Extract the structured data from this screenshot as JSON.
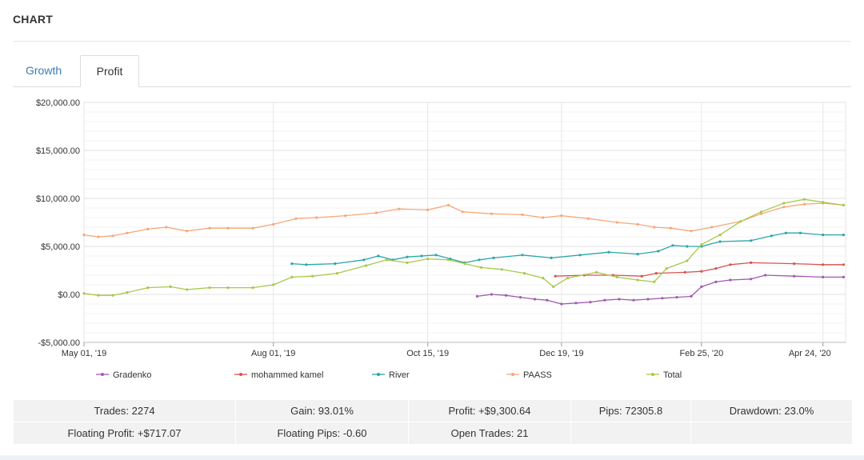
{
  "header": {
    "title": "CHART"
  },
  "tabs": [
    {
      "label": "Growth"
    },
    {
      "label": "Profit"
    }
  ],
  "chart_data": {
    "type": "line",
    "ylim": [
      -5000,
      20000
    ],
    "y_ticks": [
      {
        "value": 20000,
        "label": "$20,000.00"
      },
      {
        "value": 15000,
        "label": "$15,000.00"
      },
      {
        "value": 10000,
        "label": "$10,000.00"
      },
      {
        "value": 5000,
        "label": "$5,000.00"
      },
      {
        "value": 0,
        "label": "$0.00"
      },
      {
        "value": -5000,
        "label": "-$5,000.00"
      }
    ],
    "x_ticks": [
      {
        "date": "2019-05-01",
        "label": "May 01, '19"
      },
      {
        "date": "2019-08-01",
        "label": "Aug 01, '19"
      },
      {
        "date": "2019-10-15",
        "label": "Oct 15, '19"
      },
      {
        "date": "2019-12-19",
        "label": "Dec 19, '19"
      },
      {
        "date": "2020-02-25",
        "label": "Feb 25, '20"
      },
      {
        "date": "2020-04-24",
        "label": "Apr 24, '20"
      }
    ],
    "xlim": [
      "2019-05-01",
      "2020-05-05"
    ],
    "grid": true,
    "legend_position": "bottom",
    "series": [
      {
        "name": "Gradenko",
        "color": "#a05bb0",
        "points": [
          [
            "2019-11-08",
            -200
          ],
          [
            "2019-11-15",
            0
          ],
          [
            "2019-11-22",
            -100
          ],
          [
            "2019-11-29",
            -300
          ],
          [
            "2019-12-06",
            -500
          ],
          [
            "2019-12-12",
            -600
          ],
          [
            "2019-12-19",
            -1000
          ],
          [
            "2019-12-26",
            -900
          ],
          [
            "2020-01-02",
            -800
          ],
          [
            "2020-01-09",
            -600
          ],
          [
            "2020-01-16",
            -500
          ],
          [
            "2020-01-23",
            -600
          ],
          [
            "2020-01-30",
            -500
          ],
          [
            "2020-02-06",
            -400
          ],
          [
            "2020-02-13",
            -300
          ],
          [
            "2020-02-20",
            -200
          ],
          [
            "2020-02-25",
            800
          ],
          [
            "2020-03-03",
            1300
          ],
          [
            "2020-03-10",
            1500
          ],
          [
            "2020-03-20",
            1600
          ],
          [
            "2020-03-27",
            2000
          ],
          [
            "2020-04-10",
            1900
          ],
          [
            "2020-04-24",
            1800
          ],
          [
            "2020-05-04",
            1800
          ]
        ]
      },
      {
        "name": "mohammed kamel",
        "color": "#d9534f",
        "points": [
          [
            "2019-12-16",
            1900
          ],
          [
            "2019-12-30",
            2000
          ],
          [
            "2020-01-13",
            2000
          ],
          [
            "2020-01-27",
            1900
          ],
          [
            "2020-02-03",
            2200
          ],
          [
            "2020-02-17",
            2300
          ],
          [
            "2020-02-25",
            2400
          ],
          [
            "2020-03-03",
            2700
          ],
          [
            "2020-03-10",
            3100
          ],
          [
            "2020-03-20",
            3300
          ],
          [
            "2020-04-10",
            3200
          ],
          [
            "2020-04-24",
            3100
          ],
          [
            "2020-05-04",
            3100
          ]
        ]
      },
      {
        "name": "River",
        "color": "#2aa6a8",
        "points": [
          [
            "2019-08-10",
            3200
          ],
          [
            "2019-08-17",
            3100
          ],
          [
            "2019-08-31",
            3200
          ],
          [
            "2019-09-14",
            3600
          ],
          [
            "2019-09-21",
            4000
          ],
          [
            "2019-09-28",
            3600
          ],
          [
            "2019-10-05",
            3900
          ],
          [
            "2019-10-12",
            4000
          ],
          [
            "2019-10-19",
            4100
          ],
          [
            "2019-10-26",
            3700
          ],
          [
            "2019-11-02",
            3300
          ],
          [
            "2019-11-09",
            3600
          ],
          [
            "2019-11-16",
            3800
          ],
          [
            "2019-11-30",
            4100
          ],
          [
            "2019-12-14",
            3800
          ],
          [
            "2019-12-28",
            4100
          ],
          [
            "2020-01-11",
            4400
          ],
          [
            "2020-01-25",
            4200
          ],
          [
            "2020-02-04",
            4500
          ],
          [
            "2020-02-11",
            5100
          ],
          [
            "2020-02-18",
            5000
          ],
          [
            "2020-02-25",
            5000
          ],
          [
            "2020-03-05",
            5500
          ],
          [
            "2020-03-20",
            5600
          ],
          [
            "2020-03-30",
            6100
          ],
          [
            "2020-04-06",
            6400
          ],
          [
            "2020-04-13",
            6400
          ],
          [
            "2020-04-24",
            6200
          ],
          [
            "2020-05-04",
            6200
          ]
        ]
      },
      {
        "name": "PAASS",
        "color": "#f7a77a",
        "points": [
          [
            "2019-05-01",
            6200
          ],
          [
            "2019-05-08",
            6000
          ],
          [
            "2019-05-15",
            6100
          ],
          [
            "2019-05-22",
            6400
          ],
          [
            "2019-06-01",
            6800
          ],
          [
            "2019-06-10",
            7000
          ],
          [
            "2019-06-20",
            6600
          ],
          [
            "2019-07-01",
            6900
          ],
          [
            "2019-07-10",
            6900
          ],
          [
            "2019-07-22",
            6900
          ],
          [
            "2019-08-01",
            7300
          ],
          [
            "2019-08-12",
            7900
          ],
          [
            "2019-08-22",
            8000
          ],
          [
            "2019-09-05",
            8200
          ],
          [
            "2019-09-20",
            8500
          ],
          [
            "2019-10-01",
            8900
          ],
          [
            "2019-10-15",
            8800
          ],
          [
            "2019-10-25",
            9300
          ],
          [
            "2019-11-01",
            8600
          ],
          [
            "2019-11-15",
            8400
          ],
          [
            "2019-11-30",
            8300
          ],
          [
            "2019-12-10",
            8000
          ],
          [
            "2019-12-19",
            8200
          ],
          [
            "2020-01-01",
            7900
          ],
          [
            "2020-01-15",
            7500
          ],
          [
            "2020-01-25",
            7300
          ],
          [
            "2020-02-02",
            7000
          ],
          [
            "2020-02-10",
            6900
          ],
          [
            "2020-02-20",
            6600
          ],
          [
            "2020-03-01",
            7000
          ],
          [
            "2020-03-15",
            7600
          ],
          [
            "2020-03-25",
            8400
          ],
          [
            "2020-04-05",
            9100
          ],
          [
            "2020-04-15",
            9400
          ],
          [
            "2020-04-24",
            9500
          ],
          [
            "2020-05-04",
            9300
          ]
        ]
      },
      {
        "name": "Total",
        "color": "#a8c84b",
        "points": [
          [
            "2019-05-01",
            100
          ],
          [
            "2019-05-08",
            -100
          ],
          [
            "2019-05-15",
            -100
          ],
          [
            "2019-05-22",
            200
          ],
          [
            "2019-06-01",
            700
          ],
          [
            "2019-06-12",
            800
          ],
          [
            "2019-06-20",
            500
          ],
          [
            "2019-07-01",
            700
          ],
          [
            "2019-07-10",
            700
          ],
          [
            "2019-07-22",
            700
          ],
          [
            "2019-08-01",
            1000
          ],
          [
            "2019-08-10",
            1800
          ],
          [
            "2019-08-20",
            1900
          ],
          [
            "2019-09-01",
            2200
          ],
          [
            "2019-09-15",
            3000
          ],
          [
            "2019-09-25",
            3600
          ],
          [
            "2019-10-05",
            3300
          ],
          [
            "2019-10-15",
            3700
          ],
          [
            "2019-10-25",
            3600
          ],
          [
            "2019-11-02",
            3200
          ],
          [
            "2019-11-10",
            2800
          ],
          [
            "2019-11-20",
            2600
          ],
          [
            "2019-12-01",
            2200
          ],
          [
            "2019-12-10",
            1700
          ],
          [
            "2019-12-15",
            800
          ],
          [
            "2019-12-22",
            1700
          ],
          [
            "2020-01-05",
            2300
          ],
          [
            "2020-01-15",
            1800
          ],
          [
            "2020-01-25",
            1500
          ],
          [
            "2020-02-02",
            1300
          ],
          [
            "2020-02-08",
            2700
          ],
          [
            "2020-02-18",
            3500
          ],
          [
            "2020-02-25",
            5200
          ],
          [
            "2020-03-05",
            6200
          ],
          [
            "2020-03-15",
            7600
          ],
          [
            "2020-03-25",
            8600
          ],
          [
            "2020-04-05",
            9500
          ],
          [
            "2020-04-15",
            9900
          ],
          [
            "2020-04-24",
            9600
          ],
          [
            "2020-05-04",
            9300
          ]
        ]
      }
    ]
  },
  "stats": {
    "trades": "Trades: 2274",
    "gain": "Gain: 93.01%",
    "profit": "Profit: +$9,300.64",
    "pips": "Pips: 72305.8",
    "drawdown": "Drawdown: 23.0%",
    "floating_profit": "Floating Profit: +$717.07",
    "floating_pips": "Floating Pips: -0.60",
    "open_trades": "Open Trades: 21"
  }
}
